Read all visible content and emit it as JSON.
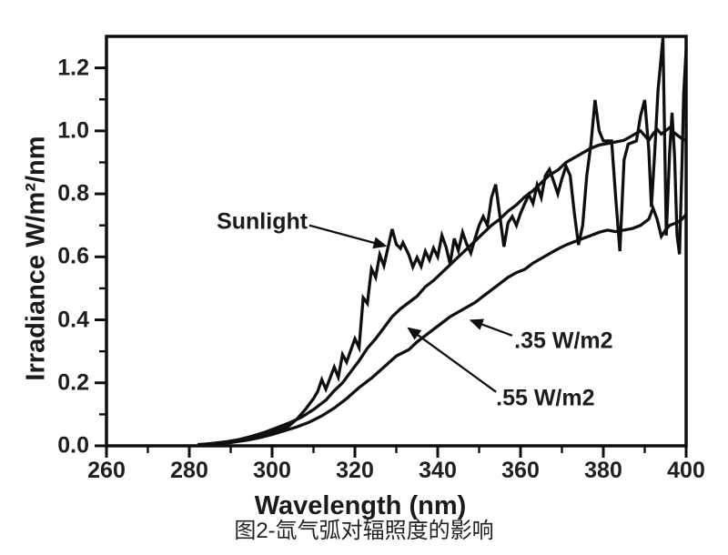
{
  "figure": {
    "caption": "图2-氙气弧对辐照度的影响"
  },
  "chart_data": {
    "type": "line",
    "title": "",
    "xlabel": "Wavelength (nm)",
    "ylabel": "Irradiance W/m²/nm",
    "xlim": [
      260,
      400
    ],
    "ylim": [
      0,
      1.3
    ],
    "grid": false,
    "legend_position": "none (labels with arrows inside plot)",
    "line_color": "#0f0f0f",
    "background": "#ffffff",
    "x_ticks": {
      "values": [
        260,
        280,
        300,
        320,
        340,
        360,
        380,
        400
      ],
      "labels": [
        "260",
        "280",
        "300",
        "320",
        "340",
        "360",
        "380",
        "400"
      ],
      "minor": [
        270,
        290,
        310,
        330,
        350,
        370,
        390
      ]
    },
    "y_ticks": {
      "values": [
        0,
        0.2,
        0.4,
        0.6,
        0.8,
        1.0,
        1.2
      ],
      "labels": [
        "0.0",
        "0.2",
        "0.4",
        "0.6",
        "0.8",
        "1.0",
        "1.2"
      ],
      "minor": [
        0.1,
        0.3,
        0.5,
        0.7,
        0.9,
        1.1
      ]
    },
    "series": [
      {
        "name": ".55 W/m2",
        "points": [
          [
            283,
            0.004
          ],
          [
            286,
            0.008
          ],
          [
            289,
            0.013
          ],
          [
            292,
            0.02
          ],
          [
            295,
            0.03
          ],
          [
            298,
            0.042
          ],
          [
            301,
            0.057
          ],
          [
            304,
            0.072
          ],
          [
            307,
            0.09
          ],
          [
            310,
            0.115
          ],
          [
            313,
            0.145
          ],
          [
            315,
            0.175
          ],
          [
            317,
            0.2
          ],
          [
            319,
            0.235
          ],
          [
            321,
            0.27
          ],
          [
            323,
            0.31
          ],
          [
            325,
            0.34
          ],
          [
            327,
            0.375
          ],
          [
            329,
            0.41
          ],
          [
            331,
            0.435
          ],
          [
            333,
            0.455
          ],
          [
            335,
            0.475
          ],
          [
            337,
            0.505
          ],
          [
            339,
            0.525
          ],
          [
            341,
            0.55
          ],
          [
            343,
            0.575
          ],
          [
            345,
            0.6
          ],
          [
            347,
            0.625
          ],
          [
            349,
            0.65
          ],
          [
            351,
            0.675
          ],
          [
            353,
            0.7
          ],
          [
            355,
            0.72
          ],
          [
            357,
            0.745
          ],
          [
            359,
            0.765
          ],
          [
            361,
            0.79
          ],
          [
            363,
            0.81
          ],
          [
            365,
            0.835
          ],
          [
            367,
            0.86
          ],
          [
            369,
            0.875
          ],
          [
            371,
            0.9
          ],
          [
            373,
            0.915
          ],
          [
            375,
            0.93
          ],
          [
            377,
            0.945
          ],
          [
            379,
            0.955
          ],
          [
            381,
            0.96
          ],
          [
            383,
            0.965
          ],
          [
            385,
            0.97
          ],
          [
            387,
            0.985
          ],
          [
            389,
            1.0
          ],
          [
            391,
            0.97
          ],
          [
            392,
            0.99
          ],
          [
            393,
            1.005
          ],
          [
            394,
            0.99
          ],
          [
            395,
            1.0
          ],
          [
            396,
            1.01
          ],
          [
            397,
            0.995
          ],
          [
            398,
            0.985
          ],
          [
            399,
            0.975
          ],
          [
            400,
            0.97
          ]
        ]
      },
      {
        "name": ".35 W/m2",
        "points": [
          [
            285,
            0.003
          ],
          [
            288,
            0.007
          ],
          [
            291,
            0.012
          ],
          [
            294,
            0.018
          ],
          [
            297,
            0.026
          ],
          [
            300,
            0.036
          ],
          [
            303,
            0.048
          ],
          [
            306,
            0.06
          ],
          [
            309,
            0.075
          ],
          [
            312,
            0.095
          ],
          [
            315,
            0.12
          ],
          [
            318,
            0.15
          ],
          [
            321,
            0.185
          ],
          [
            324,
            0.215
          ],
          [
            327,
            0.25
          ],
          [
            330,
            0.285
          ],
          [
            333,
            0.305
          ],
          [
            335,
            0.33
          ],
          [
            337,
            0.35
          ],
          [
            339,
            0.37
          ],
          [
            341,
            0.39
          ],
          [
            343,
            0.41
          ],
          [
            345,
            0.425
          ],
          [
            347,
            0.44
          ],
          [
            349,
            0.455
          ],
          [
            351,
            0.475
          ],
          [
            353,
            0.495
          ],
          [
            355,
            0.515
          ],
          [
            357,
            0.535
          ],
          [
            359,
            0.55
          ],
          [
            361,
            0.56
          ],
          [
            363,
            0.58
          ],
          [
            365,
            0.595
          ],
          [
            367,
            0.61
          ],
          [
            369,
            0.625
          ],
          [
            371,
            0.638
          ],
          [
            373,
            0.648
          ],
          [
            375,
            0.658
          ],
          [
            377,
            0.668
          ],
          [
            379,
            0.678
          ],
          [
            381,
            0.685
          ],
          [
            383,
            0.68
          ],
          [
            385,
            0.685
          ],
          [
            387,
            0.69
          ],
          [
            389,
            0.7
          ],
          [
            391,
            0.72
          ],
          [
            392,
            0.755
          ],
          [
            393,
            0.72
          ],
          [
            394,
            0.665
          ],
          [
            395,
            0.685
          ],
          [
            396,
            0.7
          ],
          [
            397,
            0.705
          ],
          [
            398,
            0.71
          ],
          [
            399,
            0.72
          ],
          [
            400,
            0.735
          ]
        ]
      },
      {
        "name": "Sunlight",
        "points": [
          [
            282,
            0.004
          ],
          [
            285,
            0.007
          ],
          [
            288,
            0.011
          ],
          [
            291,
            0.016
          ],
          [
            294,
            0.022
          ],
          [
            297,
            0.03
          ],
          [
            300,
            0.045
          ],
          [
            302,
            0.052
          ],
          [
            304,
            0.062
          ],
          [
            306,
            0.085
          ],
          [
            308,
            0.115
          ],
          [
            310,
            0.15
          ],
          [
            311,
            0.172
          ],
          [
            312,
            0.21
          ],
          [
            313,
            0.18
          ],
          [
            315,
            0.25
          ],
          [
            316,
            0.218
          ],
          [
            317,
            0.29
          ],
          [
            318,
            0.266
          ],
          [
            320,
            0.34
          ],
          [
            321,
            0.312
          ],
          [
            322,
            0.47
          ],
          [
            323,
            0.452
          ],
          [
            324,
            0.562
          ],
          [
            325,
            0.535
          ],
          [
            326,
            0.607
          ],
          [
            327,
            0.572
          ],
          [
            329,
            0.688
          ],
          [
            330,
            0.64
          ],
          [
            331,
            0.627
          ],
          [
            331.6,
            0.645
          ],
          [
            333,
            0.607
          ],
          [
            334,
            0.568
          ],
          [
            335,
            0.598
          ],
          [
            336,
            0.57
          ],
          [
            337,
            0.618
          ],
          [
            338,
            0.59
          ],
          [
            339,
            0.628
          ],
          [
            340,
            0.6
          ],
          [
            341,
            0.668
          ],
          [
            342,
            0.632
          ],
          [
            343,
            0.578
          ],
          [
            344,
            0.658
          ],
          [
            345,
            0.62
          ],
          [
            346,
            0.678
          ],
          [
            347,
            0.64
          ],
          [
            348,
            0.612
          ],
          [
            349,
            0.658
          ],
          [
            350,
            0.7
          ],
          [
            351,
            0.728
          ],
          [
            352,
            0.7
          ],
          [
            353,
            0.788
          ],
          [
            354,
            0.83
          ],
          [
            355,
            0.73
          ],
          [
            356,
            0.632
          ],
          [
            357,
            0.708
          ],
          [
            358,
            0.728
          ],
          [
            359,
            0.7
          ],
          [
            360,
            0.738
          ],
          [
            361,
            0.768
          ],
          [
            362,
            0.798
          ],
          [
            363,
            0.77
          ],
          [
            364,
            0.828
          ],
          [
            365,
            0.788
          ],
          [
            366,
            0.858
          ],
          [
            367,
            0.878
          ],
          [
            368,
            0.84
          ],
          [
            369,
            0.8
          ],
          [
            370,
            0.848
          ],
          [
            371,
            0.888
          ],
          [
            372,
            0.858
          ],
          [
            373,
            0.74
          ],
          [
            374,
            0.638
          ],
          [
            375,
            0.7
          ],
          [
            376,
            0.858
          ],
          [
            377,
            0.958
          ],
          [
            378,
            1.098
          ],
          [
            379,
            1.0
          ],
          [
            380,
            0.968
          ],
          [
            382,
            0.968
          ],
          [
            383,
            0.788
          ],
          [
            384,
            0.618
          ],
          [
            385,
            0.908
          ],
          [
            386,
            0.958
          ],
          [
            388,
            0.968
          ],
          [
            389,
            1.048
          ],
          [
            390,
            1.098
          ],
          [
            391,
            0.938
          ],
          [
            391.6,
            0.758
          ],
          [
            392.4,
            0.928
          ],
          [
            393.2,
            1.128
          ],
          [
            394.4,
            1.295
          ],
          [
            395.2,
            0.668
          ],
          [
            396,
            0.928
          ],
          [
            396.6,
            1.058
          ],
          [
            397.2,
            0.918
          ],
          [
            397.8,
            0.668
          ],
          [
            398.4,
            0.608
          ],
          [
            399,
            0.898
          ],
          [
            399.4,
            1.118
          ],
          [
            400,
            1.258
          ]
        ]
      }
    ],
    "annotations": [
      {
        "text": "Sunlight",
        "label_x": 297.6,
        "label_y": 0.71,
        "align": "center",
        "arrow": {
          "x1": 309,
          "y1": 0.7,
          "x2": 327.3,
          "y2": 0.635
        }
      },
      {
        "text": ".35 W/m2",
        "label_x": 358.5,
        "label_y": 0.332,
        "align": "left",
        "arrow": {
          "x1": 358,
          "y1": 0.35,
          "x2": 348.1,
          "y2": 0.398
        }
      },
      {
        "text": ".55 W/m2",
        "label_x": 354.1,
        "label_y": 0.15,
        "align": "left",
        "arrow": {
          "x1": 354.1,
          "y1": 0.171,
          "x2": 333,
          "y2": 0.373
        }
      }
    ]
  }
}
